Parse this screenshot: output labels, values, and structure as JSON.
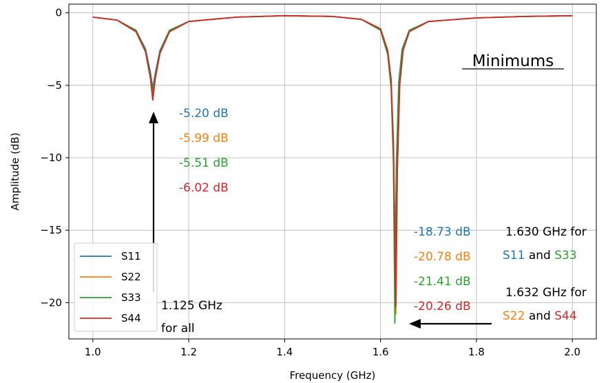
{
  "chart_data": {
    "type": "line",
    "title": "",
    "xlabel": "Frequency (GHz)",
    "ylabel": "Amplitude (dB)",
    "xlim": [
      0.95,
      2.05
    ],
    "ylim": [
      -22.5,
      0.6
    ],
    "xticks": [
      1.0,
      1.2,
      1.4,
      1.6,
      1.8,
      2.0
    ],
    "xtick_labels": [
      "1.0",
      "1.2",
      "1.4",
      "1.6",
      "1.8",
      "2.0"
    ],
    "yticks": [
      0,
      -5,
      -10,
      -15,
      -20
    ],
    "ytick_labels": [
      "0",
      "−5",
      "−10",
      "−15",
      "−20"
    ],
    "grid": true,
    "legend": "lower-left",
    "series": [
      {
        "name": "S11",
        "color": "#1f77b4",
        "x": [
          1.0,
          1.05,
          1.09,
          1.11,
          1.12,
          1.125,
          1.13,
          1.14,
          1.16,
          1.2,
          1.3,
          1.4,
          1.5,
          1.56,
          1.6,
          1.615,
          1.622,
          1.627,
          1.63,
          1.633,
          1.638,
          1.645,
          1.66,
          1.7,
          1.8,
          1.9,
          2.0
        ],
        "y": [
          -0.3,
          -0.5,
          -1.2,
          -2.5,
          -4.1,
          -5.2,
          -4.2,
          -2.6,
          -1.2,
          -0.6,
          -0.3,
          -0.2,
          -0.25,
          -0.45,
          -1.2,
          -2.8,
          -5.0,
          -10.0,
          -18.73,
          -10.5,
          -4.8,
          -2.5,
          -1.2,
          -0.6,
          -0.35,
          -0.25,
          -0.2
        ]
      },
      {
        "name": "S22",
        "color": "#ff7f0e",
        "x": [
          1.0,
          1.05,
          1.09,
          1.11,
          1.12,
          1.125,
          1.13,
          1.14,
          1.16,
          1.2,
          1.3,
          1.4,
          1.5,
          1.56,
          1.6,
          1.615,
          1.622,
          1.627,
          1.632,
          1.635,
          1.64,
          1.647,
          1.66,
          1.7,
          1.8,
          1.9,
          2.0
        ],
        "y": [
          -0.3,
          -0.5,
          -1.3,
          -2.7,
          -4.5,
          -5.99,
          -4.6,
          -2.8,
          -1.3,
          -0.6,
          -0.3,
          -0.2,
          -0.25,
          -0.45,
          -1.1,
          -2.6,
          -4.6,
          -9.0,
          -20.78,
          -11.0,
          -5.0,
          -2.6,
          -1.3,
          -0.6,
          -0.35,
          -0.25,
          -0.2
        ]
      },
      {
        "name": "S33",
        "color": "#2ca02c",
        "x": [
          1.0,
          1.05,
          1.09,
          1.11,
          1.12,
          1.125,
          1.13,
          1.14,
          1.16,
          1.2,
          1.3,
          1.4,
          1.5,
          1.56,
          1.6,
          1.615,
          1.622,
          1.627,
          1.63,
          1.633,
          1.638,
          1.645,
          1.66,
          1.7,
          1.8,
          1.9,
          2.0
        ],
        "y": [
          -0.3,
          -0.5,
          -1.2,
          -2.6,
          -4.3,
          -5.51,
          -4.4,
          -2.7,
          -1.2,
          -0.6,
          -0.3,
          -0.2,
          -0.25,
          -0.45,
          -1.2,
          -2.9,
          -5.2,
          -10.5,
          -21.41,
          -11.0,
          -5.0,
          -2.6,
          -1.2,
          -0.6,
          -0.35,
          -0.25,
          -0.2
        ]
      },
      {
        "name": "S44",
        "color": "#d62728",
        "x": [
          1.0,
          1.05,
          1.09,
          1.11,
          1.12,
          1.125,
          1.13,
          1.14,
          1.16,
          1.2,
          1.3,
          1.4,
          1.5,
          1.56,
          1.6,
          1.615,
          1.622,
          1.627,
          1.632,
          1.635,
          1.64,
          1.647,
          1.66,
          1.7,
          1.8,
          1.9,
          2.0
        ],
        "y": [
          -0.3,
          -0.5,
          -1.3,
          -2.7,
          -4.5,
          -6.02,
          -4.6,
          -2.8,
          -1.3,
          -0.6,
          -0.3,
          -0.2,
          -0.25,
          -0.45,
          -1.1,
          -2.6,
          -4.6,
          -9.0,
          -20.26,
          -11.0,
          -5.0,
          -2.6,
          -1.3,
          -0.6,
          -0.35,
          -0.25,
          -0.2
        ]
      }
    ],
    "annotations": {
      "heading": "Minimums",
      "first_min_values": [
        {
          "text": "-5.20 dB",
          "color": "#1f77b4"
        },
        {
          "text": "-5.99 dB",
          "color": "#ff7f0e"
        },
        {
          "text": "-5.51 dB",
          "color": "#2ca02c"
        },
        {
          "text": "-6.02 dB",
          "color": "#d62728"
        }
      ],
      "second_min_values": [
        {
          "text": "-18.73 dB",
          "color": "#1f77b4"
        },
        {
          "text": "-20.78 dB",
          "color": "#ff7f0e"
        },
        {
          "text": "-21.41 dB",
          "color": "#2ca02c"
        },
        {
          "text": "-20.26 dB",
          "color": "#d62728"
        }
      ],
      "first_freq_line1": "1.125 GHz",
      "first_freq_line2": "for all",
      "freq_a_line1": "1.630 GHz for",
      "freq_a_s1": "S11",
      "freq_a_and": " and ",
      "freq_a_s2": "S33",
      "freq_b_line1": "1.632 GHz for",
      "freq_b_s1": "S22",
      "freq_b_and": " and ",
      "freq_b_s2": "S44"
    }
  }
}
